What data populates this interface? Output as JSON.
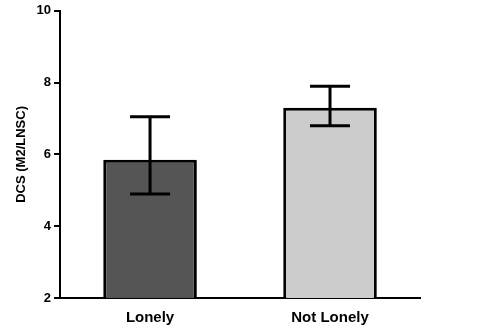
{
  "chart_data": {
    "type": "bar",
    "y_label": "DCS (M2/LNSC)",
    "categories": [
      "Lonely",
      "Not Lonely"
    ],
    "values": [
      5.85,
      7.3
    ],
    "error_lower": [
      4.9,
      6.8
    ],
    "error_upper": [
      7.05,
      7.9
    ],
    "colors": [
      "#555555",
      "#cccccc"
    ],
    "ylim": [
      2,
      10
    ],
    "yticks": [
      2,
      4,
      6,
      8,
      10
    ],
    "grid": false
  }
}
